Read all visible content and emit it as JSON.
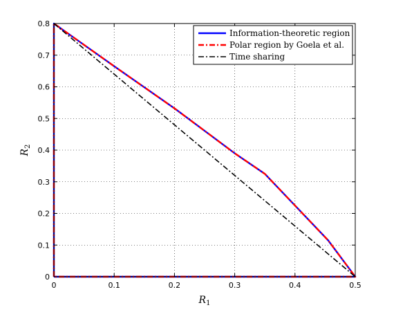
{
  "chart_data": {
    "type": "line",
    "xlabel": "R",
    "xlabel_sub": "1",
    "ylabel": "R",
    "ylabel_sub": "2",
    "xlim": [
      0,
      0.5
    ],
    "ylim": [
      0,
      0.8
    ],
    "xticks": [
      "0",
      "0.1",
      "0.2",
      "0.3",
      "0.4",
      "0.5"
    ],
    "yticks": [
      "0",
      "0.1",
      "0.2",
      "0.3",
      "0.4",
      "0.5",
      "0.6",
      "0.7",
      "0.8"
    ],
    "grid": true,
    "legend_position": "top-right",
    "series": [
      {
        "name": "Information-theoretic region",
        "color": "#0000ff",
        "style": "solid",
        "points": [
          [
            0,
            0
          ],
          [
            0,
            0.8
          ],
          [
            0.1,
            0.665
          ],
          [
            0.2,
            0.532
          ],
          [
            0.3,
            0.39
          ],
          [
            0.35,
            0.325
          ],
          [
            0.4,
            0.225
          ],
          [
            0.455,
            0.115
          ],
          [
            0.5,
            0
          ],
          [
            0,
            0
          ]
        ]
      },
      {
        "name": "Polar region by Goela et al.",
        "color": "#ff0000",
        "style": "dashdot",
        "points": [
          [
            0,
            0
          ],
          [
            0,
            0.8
          ],
          [
            0.1,
            0.665
          ],
          [
            0.2,
            0.532
          ],
          [
            0.3,
            0.39
          ],
          [
            0.35,
            0.325
          ],
          [
            0.4,
            0.225
          ],
          [
            0.455,
            0.115
          ],
          [
            0.5,
            0
          ],
          [
            0,
            0
          ]
        ]
      },
      {
        "name": "Time sharing",
        "color": "#000000",
        "style": "dashdot",
        "points": [
          [
            0,
            0.8
          ],
          [
            0.5,
            0
          ]
        ]
      }
    ]
  }
}
